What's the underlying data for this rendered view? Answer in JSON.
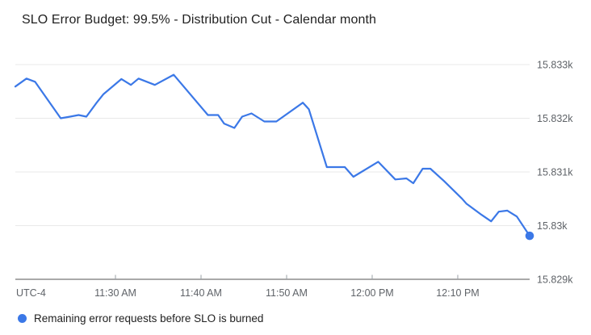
{
  "colors": {
    "line": "#3b78e7",
    "end_marker": "#3b78e7",
    "grid": "#e9e9e9",
    "axis": "#767676",
    "tick": "#9aa0a6",
    "tick_label": "#5f6368",
    "title": "#212121",
    "legend_text": "#212121",
    "background": "#ffffff"
  },
  "chart_data": {
    "type": "line",
    "title": "SLO Error Budget: 99.5% - Distribution Cut - Calendar month",
    "timezone_label": "UTC-4",
    "xlabel": "",
    "ylabel": "",
    "x_unit": "minutes elapsed in visible window (approx. 11:18 AM to 12:18 PM, UTC-4)",
    "xlim": [
      0,
      60.1
    ],
    "ylim": [
      15829,
      15833.15
    ],
    "grid": true,
    "legend_position": "bottom-left",
    "x_ticks": [
      {
        "minute": 11.7,
        "label": "11:30 AM"
      },
      {
        "minute": 21.7,
        "label": "11:40 AM"
      },
      {
        "minute": 31.7,
        "label": "11:50 AM"
      },
      {
        "minute": 41.7,
        "label": "12:00 PM"
      },
      {
        "minute": 51.7,
        "label": "12:10 PM"
      }
    ],
    "y_ticks": [
      {
        "value": 15833,
        "label": "15.833k"
      },
      {
        "value": 15832,
        "label": "15.832k"
      },
      {
        "value": 15831,
        "label": "15.831k"
      },
      {
        "value": 15830,
        "label": "15.83k"
      },
      {
        "value": 15829,
        "label": "15.829k"
      }
    ],
    "series": [
      {
        "name": "Remaining error requests before SLO is burned",
        "color": "#3b78e7",
        "end_marker": true,
        "points": [
          [
            0.0,
            15832.59
          ],
          [
            1.3,
            15832.74
          ],
          [
            2.3,
            15832.68
          ],
          [
            5.3,
            15832.0
          ],
          [
            6.4,
            15832.03
          ],
          [
            7.4,
            15832.06
          ],
          [
            8.3,
            15832.03
          ],
          [
            9.5,
            15832.29
          ],
          [
            10.3,
            15832.45
          ],
          [
            12.4,
            15832.73
          ],
          [
            13.5,
            15832.62
          ],
          [
            14.4,
            15832.74
          ],
          [
            16.3,
            15832.62
          ],
          [
            18.5,
            15832.81
          ],
          [
            22.5,
            15832.06
          ],
          [
            23.7,
            15832.06
          ],
          [
            24.4,
            15831.9
          ],
          [
            25.6,
            15831.82
          ],
          [
            26.5,
            15832.03
          ],
          [
            27.6,
            15832.09
          ],
          [
            29.1,
            15831.94
          ],
          [
            30.5,
            15831.94
          ],
          [
            33.6,
            15832.29
          ],
          [
            34.3,
            15832.17
          ],
          [
            36.4,
            15831.09
          ],
          [
            38.5,
            15831.09
          ],
          [
            39.5,
            15830.91
          ],
          [
            42.4,
            15831.19
          ],
          [
            44.4,
            15830.86
          ],
          [
            45.7,
            15830.88
          ],
          [
            46.5,
            15830.79
          ],
          [
            47.6,
            15831.06
          ],
          [
            48.5,
            15831.06
          ],
          [
            50.1,
            15830.83
          ],
          [
            52.2,
            15830.5
          ],
          [
            52.7,
            15830.41
          ],
          [
            54.5,
            15830.2
          ],
          [
            55.6,
            15830.08
          ],
          [
            56.5,
            15830.26
          ],
          [
            57.5,
            15830.28
          ],
          [
            58.6,
            15830.17
          ],
          [
            60.1,
            15829.81
          ]
        ]
      }
    ]
  }
}
